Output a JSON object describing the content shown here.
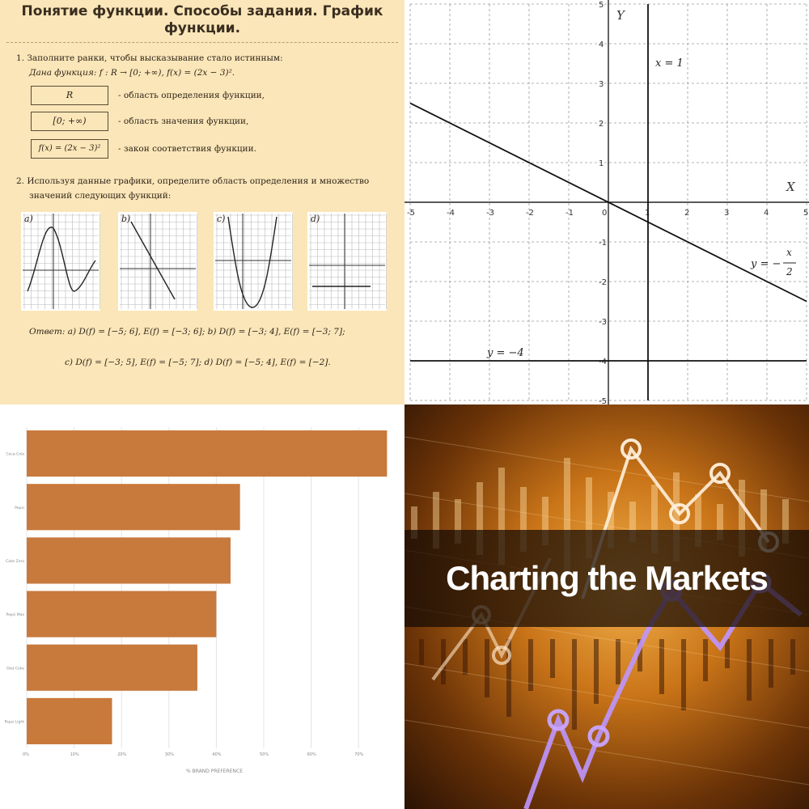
{
  "worksheet": {
    "title_line1": "Понятие функции. Способы задания. График",
    "title_line2": "функции.",
    "q1": "1.  Заполните ранки, чтобы высказывание стало истинным:",
    "q1_given": "Дана функция:  f : R → [0; +∞),   f(x) = (2x − 3)².",
    "box1": "R",
    "box1_desc": "- область определения функции,",
    "box2": "[0; +∞)",
    "box2_desc": "- область значения функции,",
    "box3": "f(x) = (2x − 3)²",
    "box3_desc": "- закон соответствия функции.",
    "q2_line1": "2.  Используя данные графики, определите область определения и множество",
    "q2_line2": "значений следующих функций:",
    "mini_labels": [
      "a)",
      "b)",
      "c)",
      "d)"
    ],
    "answer_line1": "Ответ:  a)  D(f) = [−5; 6],   E(f) = [−3; 6];     b)  D(f) = [−3; 4],   E(f) = [−3; 7];",
    "answer_line2": "c)  D(f) = [−3; 5],   E(f) = [−5; 7];     d)  D(f) = [−5; 4],   E(f) = [−2]."
  },
  "chart_data": [
    {
      "type": "line",
      "title": "",
      "xlabel": "X",
      "ylabel": "Y",
      "xlim": [
        -5,
        5
      ],
      "ylim": [
        -5,
        5
      ],
      "grid": true,
      "x_ticks": [
        -5,
        -4,
        -3,
        -2,
        -1,
        0,
        1,
        2,
        3,
        4,
        5
      ],
      "y_ticks": [
        -5,
        -4,
        -3,
        -2,
        -1,
        1,
        2,
        3,
        4,
        5
      ],
      "series": [
        {
          "x": [
            -5,
            5
          ],
          "y": [
            2.5,
            -2.5
          ]
        },
        {
          "x": [
            1,
            1
          ],
          "y": [
            -5,
            5
          ]
        },
        {
          "x": [
            -5,
            5
          ],
          "y": [
            -4,
            -4
          ]
        }
      ],
      "annotations": {
        "line1": "y = −",
        "line1_num": "x",
        "line1_den": "2",
        "line2": "x = 1",
        "line3": "y = −4"
      }
    },
    {
      "type": "bar",
      "orientation": "horizontal",
      "categories": [
        "Coca-Cola",
        "Pepsi",
        "Coke Zero",
        "Pepsi Max",
        "Diet Coke",
        "Pepsi Light"
      ],
      "values": [
        76,
        45,
        43,
        40,
        36,
        18
      ],
      "xlim": [
        0,
        80
      ],
      "x_ticks": [
        "0%",
        "10%",
        "20%",
        "30%",
        "40%",
        "50%",
        "60%",
        "70%"
      ],
      "xlabel": "% BRAND PREFERENCE",
      "bar_color": "#c8793c",
      "grid": true
    }
  ],
  "banner": {
    "title": "Charting the Markets"
  },
  "colors": {
    "worksheet_bg": "#fbe6b9",
    "bar": "#c8793c",
    "banner_text": "#ffffff"
  }
}
